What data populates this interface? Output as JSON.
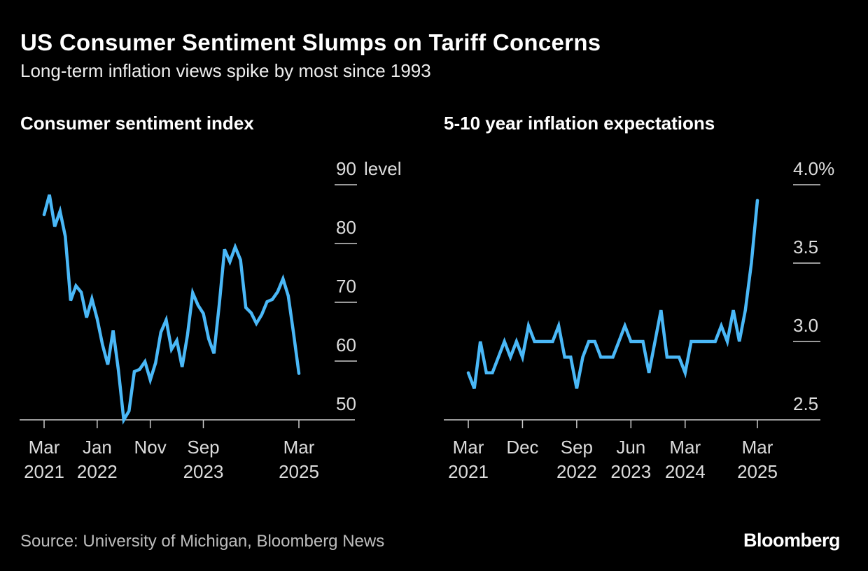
{
  "title": "US Consumer Sentiment Slumps on Tariff Concerns",
  "subtitle": "Long-term inflation views spike by most since 1993",
  "source": "Source: University of Michigan, Bloomberg News",
  "logo": "Bloomberg",
  "colors": {
    "line": "#4ab8f7",
    "background": "#000000",
    "axis": "#cccccc"
  },
  "chart_data": [
    {
      "type": "line",
      "title": "Consumer sentiment index",
      "ylabel": "level",
      "ylim": [
        50,
        90
      ],
      "yticks": [
        "50",
        "60",
        "70",
        "80",
        "90"
      ],
      "y_unit_label": "level",
      "x_start": "2021-03",
      "x_end": "2025-03",
      "xticks": [
        {
          "month": "2021-03",
          "line1": "Mar",
          "line2": "2021"
        },
        {
          "month": "2022-01",
          "line1": "Jan",
          "line2": "2022"
        },
        {
          "month": "2022-11",
          "line1": "Nov",
          "line2": ""
        },
        {
          "month": "2023-09",
          "line1": "Sep",
          "line2": "2023"
        },
        {
          "month": "2025-03",
          "line1": "Mar",
          "line2": "2025"
        }
      ],
      "grid": false,
      "values": [
        84.9,
        88.3,
        82.9,
        85.5,
        81.2,
        70.3,
        72.8,
        71.7,
        67.4,
        70.6,
        67.2,
        62.8,
        59.4,
        65.2,
        58.4,
        50.0,
        51.5,
        58.2,
        58.6,
        59.9,
        56.8,
        59.7,
        64.9,
        67.0,
        62.0,
        63.5,
        59.0,
        64.4,
        71.6,
        69.5,
        68.1,
        63.8,
        61.3,
        69.7,
        79.0,
        76.9,
        79.4,
        77.2,
        69.1,
        68.2,
        66.4,
        67.9,
        70.1,
        70.5,
        71.8,
        74.0,
        71.1,
        64.7,
        57.9
      ]
    },
    {
      "type": "line",
      "title": "5-10 year inflation expectations",
      "ylim": [
        2.5,
        4.0
      ],
      "yticks": [
        "2.5",
        "3.0",
        "3.5",
        "4.0%"
      ],
      "x_start": "2021-03",
      "x_end": "2025-03",
      "xticks": [
        {
          "month": "2021-03",
          "line1": "Mar",
          "line2": "2021"
        },
        {
          "month": "2021-12",
          "line1": "Dec",
          "line2": ""
        },
        {
          "month": "2022-09",
          "line1": "Sep",
          "line2": "2022"
        },
        {
          "month": "2023-06",
          "line1": "Jun",
          "line2": "2023"
        },
        {
          "month": "2024-03",
          "line1": "Mar",
          "line2": "2024"
        },
        {
          "month": "2025-03",
          "line1": "Mar",
          "line2": "2025"
        }
      ],
      "grid": false,
      "values": [
        2.8,
        2.7,
        3.0,
        2.8,
        2.8,
        2.9,
        3.0,
        2.9,
        3.0,
        2.9,
        3.1,
        3.0,
        3.0,
        3.0,
        3.0,
        3.1,
        2.9,
        2.9,
        2.7,
        2.9,
        3.0,
        3.0,
        2.9,
        2.9,
        2.9,
        3.0,
        3.1,
        3.0,
        3.0,
        3.0,
        2.8,
        3.0,
        3.2,
        2.9,
        2.9,
        2.9,
        2.8,
        3.0,
        3.0,
        3.0,
        3.0,
        3.0,
        3.1,
        3.0,
        3.2,
        3.0,
        3.2,
        3.5,
        3.9
      ]
    }
  ]
}
